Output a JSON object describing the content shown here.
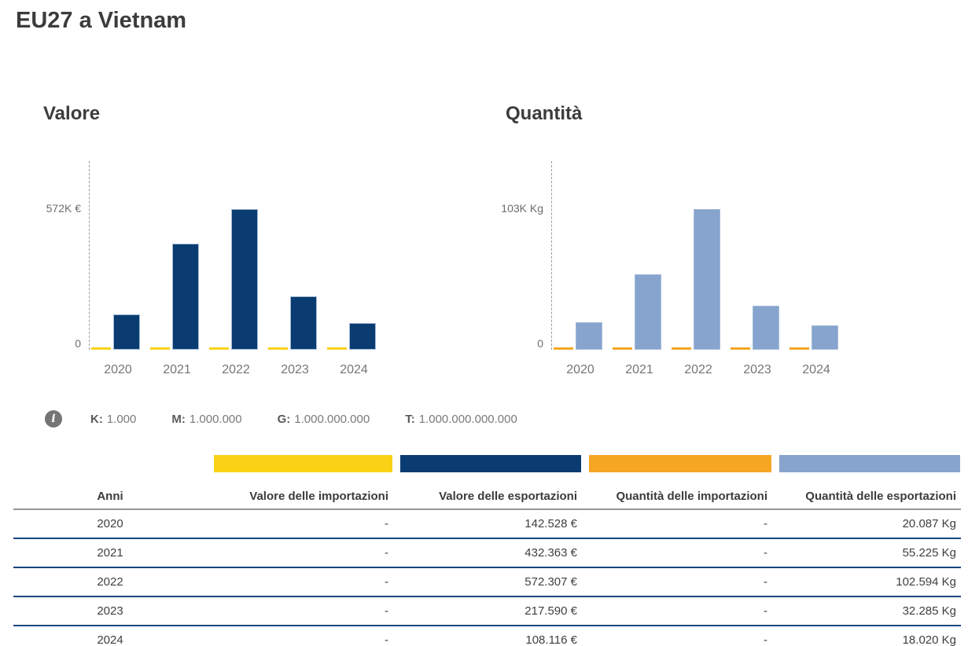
{
  "page": {
    "title": "EU27 a Vietnam"
  },
  "colors": {
    "import_value": "#FBD116",
    "export_value": "#0A3C71",
    "import_qty": "#F5A623",
    "export_qty": "#86A4CD",
    "row_separator": "#17477D",
    "header_border": "#979797"
  },
  "info": {
    "items": [
      {
        "label": "K:",
        "value": "1.000"
      },
      {
        "label": "M:",
        "value": "1.000.000"
      },
      {
        "label": "G:",
        "value": "1.000.000.000"
      },
      {
        "label": "T:",
        "value": "1.000.000.000.000"
      }
    ]
  },
  "chart_data": [
    {
      "type": "bar",
      "title": "Valore",
      "categories": [
        "2020",
        "2021",
        "2022",
        "2023",
        "2024"
      ],
      "series": [
        {
          "name": "Valore delle importazioni",
          "color": "#FBD116",
          "values": [
            0,
            0,
            0,
            0,
            0
          ]
        },
        {
          "name": "Valore delle esportazioni",
          "color": "#0A3C71",
          "values": [
            142528,
            432363,
            572307,
            217590,
            108116
          ]
        }
      ],
      "ylim": [
        0,
        572307
      ],
      "y_axis_labels": {
        "max": "572K €",
        "zero": "0"
      },
      "unit": "€",
      "grid": false,
      "legend_position": "none"
    },
    {
      "type": "bar",
      "title": "Quantità",
      "categories": [
        "2020",
        "2021",
        "2022",
        "2023",
        "2024"
      ],
      "series": [
        {
          "name": "Quantità delle importazioni",
          "color": "#F5A623",
          "values": [
            0,
            0,
            0,
            0,
            0
          ]
        },
        {
          "name": "Quantità delle esportazioni",
          "color": "#86A4CD",
          "values": [
            20087,
            55225,
            102594,
            32285,
            18020
          ]
        }
      ],
      "ylim": [
        0,
        102594
      ],
      "y_axis_labels": {
        "max": "103K Kg",
        "zero": "0"
      },
      "unit": "Kg",
      "grid": false,
      "legend_position": "none"
    }
  ],
  "table": {
    "columns": [
      {
        "label": "Anni",
        "color": null
      },
      {
        "label": "Valore delle importazioni",
        "color": "#FBD116"
      },
      {
        "label": "Valore delle esportazioni",
        "color": "#0A3C71"
      },
      {
        "label": "Quantità delle importazioni",
        "color": "#F5A623"
      },
      {
        "label": "Quantità delle esportazioni",
        "color": "#86A4CD"
      }
    ],
    "rows": [
      [
        "2020",
        "-",
        "142.528 €",
        "-",
        "20.087 Kg"
      ],
      [
        "2021",
        "-",
        "432.363 €",
        "-",
        "55.225 Kg"
      ],
      [
        "2022",
        "-",
        "572.307 €",
        "-",
        "102.594 Kg"
      ],
      [
        "2023",
        "-",
        "217.590 €",
        "-",
        "32.285 Kg"
      ],
      [
        "2024",
        "-",
        "108.116 €",
        "-",
        "18.020 Kg"
      ]
    ]
  }
}
